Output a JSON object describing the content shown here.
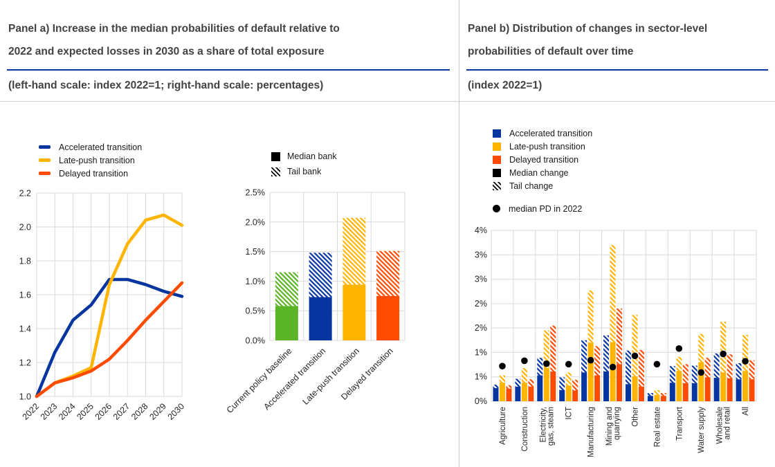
{
  "colors": {
    "blue": "#0635a0",
    "yellow": "#ffb400",
    "orange": "#ff4b00",
    "green": "#5bb428",
    "black": "#000000",
    "title_text": "#424242",
    "title_rule": "#00339b",
    "gridline": "#d9d9d9"
  },
  "panel_a": {
    "title_line1": "Panel a) Increase in the median probabilities of default relative to",
    "title_line2": "2022 and expected losses in 2030 as a share of total exposure",
    "subtitle": "(left-hand scale: index 2022=1; right-hand scale: percentages)",
    "line_legend": [
      {
        "label": "Accelerated transition",
        "color": "#0635a0"
      },
      {
        "label": "Late-push transition",
        "color": "#ffb400"
      },
      {
        "label": "Delayed transition",
        "color": "#ff4b00"
      }
    ],
    "bar_legend": [
      {
        "label": "Median bank",
        "style": "solid"
      },
      {
        "label": "Tail bank",
        "style": "hatch"
      }
    ]
  },
  "panel_b": {
    "title_line1": "Panel b) Distribution of changes in sector-level",
    "title_line2": "probabilities of default over time",
    "subtitle": "(index 2022=1)",
    "legend": [
      {
        "label": "Accelerated transition",
        "swatch": "blue"
      },
      {
        "label": "Late-push transition",
        "swatch": "yellow"
      },
      {
        "label": "Delayed transition",
        "swatch": "orange"
      },
      {
        "label": "Median change",
        "swatch": "black"
      },
      {
        "label": "Tail change",
        "swatch": "hatch"
      }
    ],
    "dot_legend": "median PD in 2022"
  },
  "chart_data": [
    {
      "id": "pd-index-lines",
      "type": "line",
      "title": "Median probabilities of default relative to 2022 (index 2022=1)",
      "x": [
        2022,
        2023,
        2024,
        2025,
        2026,
        2027,
        2028,
        2029,
        2030
      ],
      "series": [
        {
          "name": "Accelerated transition",
          "color": "#0635a0",
          "values": [
            1.0,
            1.26,
            1.45,
            1.54,
            1.69,
            1.69,
            1.66,
            1.62,
            1.59
          ]
        },
        {
          "name": "Late-push transition",
          "color": "#ffb400",
          "values": [
            1.0,
            1.08,
            1.12,
            1.17,
            1.66,
            1.9,
            2.04,
            2.07,
            2.01
          ]
        },
        {
          "name": "Delayed transition",
          "color": "#ff4b00",
          "values": [
            1.0,
            1.08,
            1.11,
            1.15,
            1.22,
            1.33,
            1.45,
            1.56,
            1.67
          ]
        }
      ],
      "ylim": [
        1.0,
        2.2
      ],
      "yticks_labels": [
        "1.0",
        "1.2",
        "1.4",
        "1.6",
        "1.8",
        "2.0",
        "2.2"
      ],
      "grid": true,
      "legend_position": "top-left"
    },
    {
      "id": "expected-losses-bars",
      "type": "bar",
      "title": "Expected losses in 2030 as a share of total exposure (percentages)",
      "categories": [
        "Current policy baseline",
        "Accelerated transition",
        "Late-push transition",
        "Delayed transition"
      ],
      "colors": [
        "#5bb428",
        "#0635a0",
        "#ffb400",
        "#ff4b00"
      ],
      "median_bank": [
        0.58,
        0.73,
        0.94,
        0.75
      ],
      "total_with_tail_bank": [
        1.15,
        1.48,
        2.07,
        1.51
      ],
      "ylim": [
        0,
        2.5
      ],
      "yticks_labels": [
        "0.0%",
        "0.5%",
        "1.0%",
        "1.5%",
        "2.0%",
        "2.5%"
      ],
      "grid": true,
      "legend_position": "top"
    },
    {
      "id": "sector-pd-bars",
      "type": "bar",
      "title": "Distribution of changes in sector-level probabilities of default (index 2022=1)",
      "categories": [
        [
          "Agriculture"
        ],
        [
          "Construction"
        ],
        [
          "Electricity,",
          "gas, steam"
        ],
        [
          "ICT"
        ],
        [
          "Manufacturing"
        ],
        [
          "Mining and",
          "quarrying"
        ],
        [
          "Other"
        ],
        [
          "Real estate"
        ],
        [
          "Transport"
        ],
        [
          "Water supply"
        ],
        [
          "Wholesale",
          "and retail"
        ],
        [
          "All"
        ]
      ],
      "series_names": [
        "Accelerated transition",
        "Late-push transition",
        "Delayed transition"
      ],
      "colors": [
        "#0635a0",
        "#ffb400",
        "#ff4b00"
      ],
      "median_change": [
        [
          0.27,
          0.38,
          0.26
        ],
        [
          0.3,
          0.38,
          0.3
        ],
        [
          0.53,
          0.68,
          0.61
        ],
        [
          0.23,
          0.32,
          0.22
        ],
        [
          0.59,
          1.2,
          0.53
        ],
        [
          0.61,
          1.21,
          0.76
        ],
        [
          0.35,
          0.51,
          0.3
        ],
        [
          0.11,
          0.13,
          0.11
        ],
        [
          0.38,
          0.62,
          0.37
        ],
        [
          0.37,
          0.8,
          0.49
        ],
        [
          0.48,
          0.59,
          0.47
        ],
        [
          0.45,
          0.62,
          0.45
        ]
      ],
      "tail_change_total": [
        [
          0.34,
          0.53,
          0.33
        ],
        [
          0.46,
          0.68,
          0.45
        ],
        [
          0.89,
          1.45,
          1.55
        ],
        [
          0.49,
          0.59,
          0.44
        ],
        [
          1.25,
          2.27,
          1.13
        ],
        [
          1.35,
          3.2,
          1.9
        ],
        [
          1.04,
          1.77,
          1.05
        ],
        [
          0.17,
          0.23,
          0.17
        ],
        [
          0.72,
          0.91,
          0.76
        ],
        [
          0.73,
          1.38,
          0.89
        ],
        [
          0.98,
          1.63,
          0.96
        ],
        [
          0.78,
          1.36,
          0.84
        ]
      ],
      "median_pd_2022": [
        0.72,
        0.83,
        0.77,
        0.76,
        0.84,
        0.7,
        0.93,
        0.76,
        1.08,
        0.59,
        0.97,
        0.82
      ],
      "ylim": [
        0,
        3.5
      ],
      "yticks_labels": [
        "0%",
        "1%",
        "1%",
        "2%",
        "2%",
        "3%",
        "3%",
        "4%"
      ],
      "grid": true,
      "legend_position": "top"
    }
  ]
}
